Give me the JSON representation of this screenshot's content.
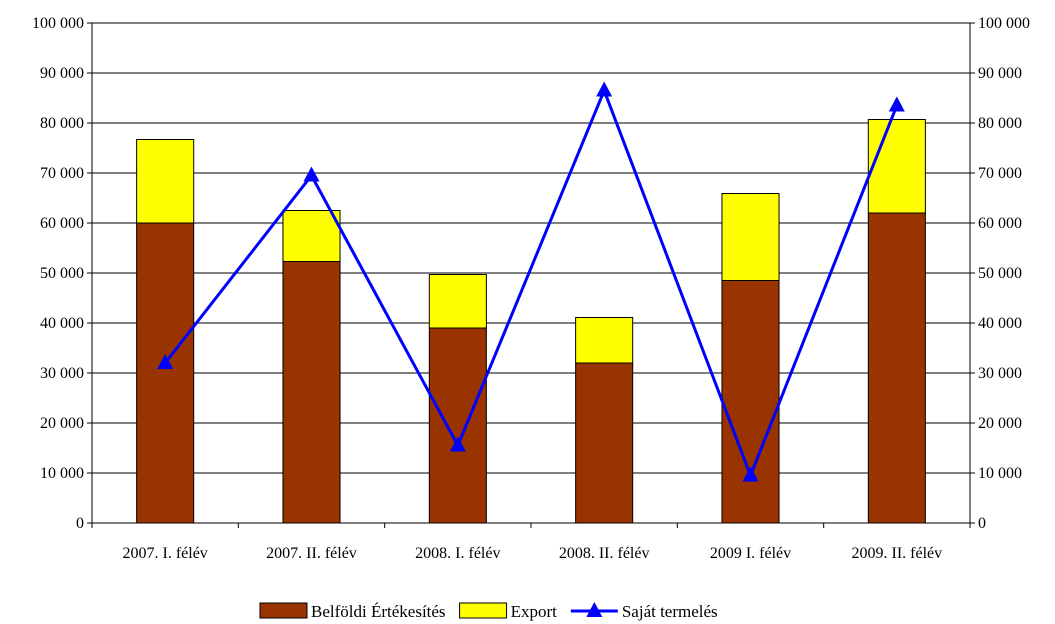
{
  "chart_data": {
    "type": "bar",
    "stacked": true,
    "title": "",
    "xlabel": "",
    "ylabel": "",
    "categories": [
      "2007. I. félév",
      "2007. II. félév",
      "2008. I. félév",
      "2008. II. félév",
      "2009 I. félév",
      "2009. II. félév"
    ],
    "series": [
      {
        "name": "Belföldi Értékesítés",
        "type": "bar",
        "values": [
          60000,
          52300,
          39000,
          32000,
          48500,
          62000
        ]
      },
      {
        "name": "Export",
        "type": "bar",
        "values": [
          16700,
          10200,
          10700,
          9100,
          17400,
          18700
        ]
      },
      {
        "name": "Saját termelés",
        "type": "line",
        "axis": "right",
        "marker": "triangle",
        "values": [
          32000,
          69500,
          15500,
          86500,
          9500,
          83500
        ]
      }
    ],
    "ylim": [
      0,
      100000
    ],
    "y2lim": [
      0,
      100000
    ],
    "yticks": [
      "0",
      "10 000",
      "20 000",
      "30 000",
      "40 000",
      "50 000",
      "60 000",
      "70 000",
      "80 000",
      "90 000",
      "100 000"
    ],
    "y2ticks": [
      "0",
      "10 000",
      "20 000",
      "30 000",
      "40 000",
      "50 000",
      "60 000",
      "70 000",
      "80 000",
      "90 000",
      "100 000"
    ],
    "grid": true,
    "legend": "bottom",
    "colors": {
      "Belföldi Értékesítés": "#993300",
      "Export": "#ffff00",
      "Saját termelés": "#0000ff"
    }
  }
}
